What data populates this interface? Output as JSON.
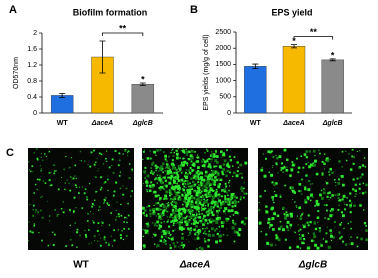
{
  "panels": [
    "A",
    "B",
    "C"
  ],
  "chart_data": [
    {
      "type": "bar",
      "title": "Biofilm formation",
      "y_label": "OD570nm",
      "categories": [
        "WT",
        "ΔaceA",
        "ΔglcB"
      ],
      "values": [
        0.44,
        1.4,
        0.72
      ],
      "errors": [
        0.05,
        0.4,
        0.03
      ],
      "colors": [
        "#1f6fe0",
        "#f7b800",
        "#8a8a8a"
      ],
      "ylim": [
        0,
        2
      ],
      "yticks": [
        0,
        0.4,
        0.8,
        1.2,
        1.6,
        2
      ],
      "annotations": [
        {
          "text": "*",
          "category": "ΔglcB"
        },
        {
          "text": "**",
          "categories": [
            "ΔaceA",
            "ΔglcB"
          ]
        }
      ]
    },
    {
      "type": "bar",
      "title": "EPS yield",
      "y_label": "EPS yields (mg/g of cell)",
      "categories": [
        "WT",
        "ΔaceA",
        "ΔglcB"
      ],
      "values": [
        1440,
        2060,
        1640
      ],
      "errors": [
        70,
        50,
        30
      ],
      "colors": [
        "#1f6fe0",
        "#f7b800",
        "#8a8a8a"
      ],
      "ylim": [
        0,
        2500
      ],
      "yticks": [
        0,
        500,
        1000,
        1500,
        2000,
        2500
      ],
      "annotations": [
        {
          "text": "*",
          "category": "ΔaceA"
        },
        {
          "text": "*",
          "category": "ΔglcB"
        },
        {
          "text": "**",
          "categories": [
            "ΔaceA",
            "ΔglcB"
          ]
        }
      ]
    }
  ],
  "images": {
    "labels": [
      "WT",
      "ΔaceA",
      "ΔglcB"
    ]
  }
}
